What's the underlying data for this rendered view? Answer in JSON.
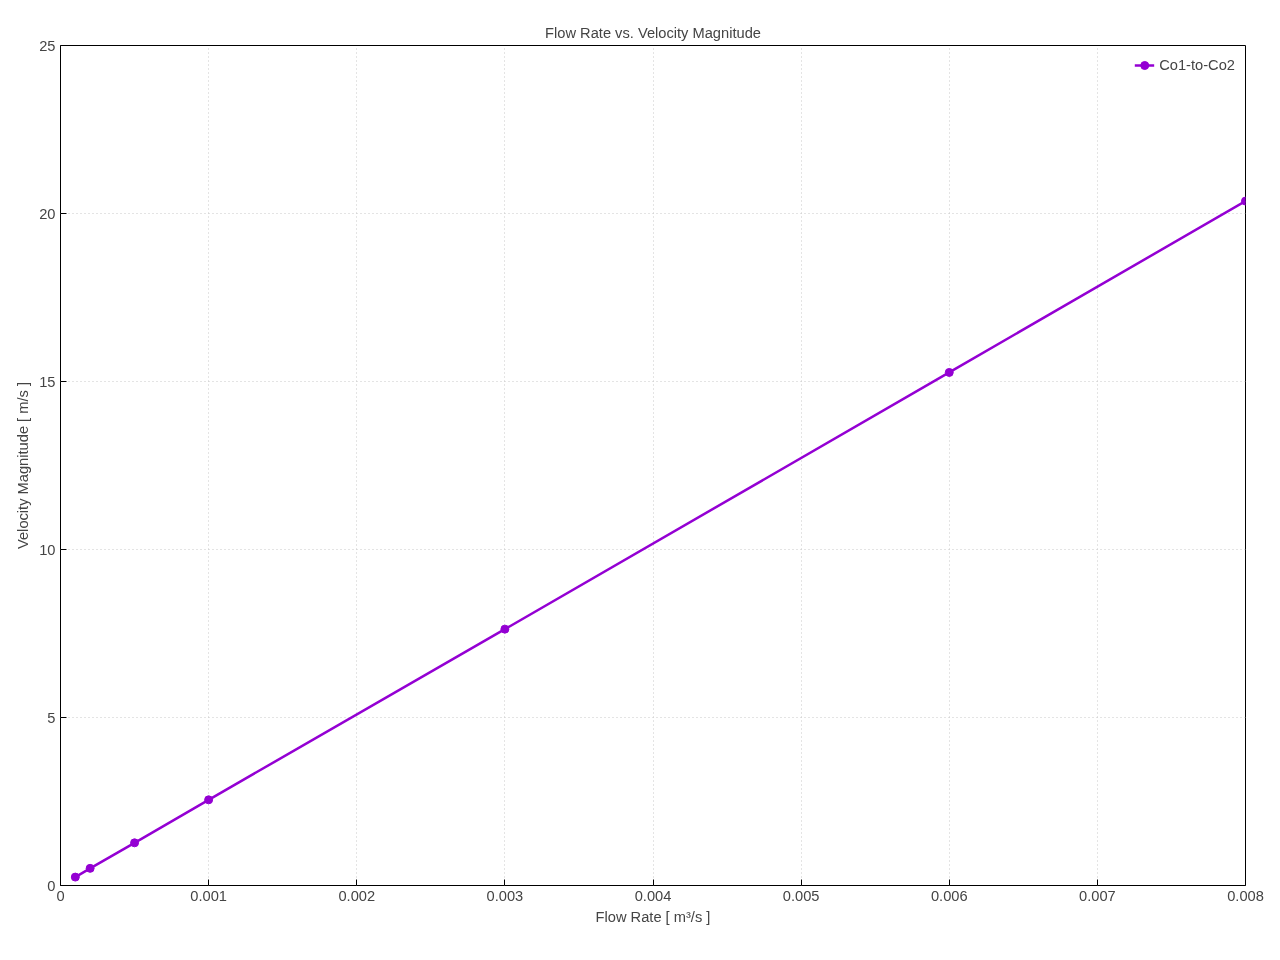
{
  "chart_data": {
    "type": "line",
    "title": "Flow Rate vs. Velocity Magnitude",
    "xlabel": "Flow Rate [ m³/s ]",
    "ylabel": "Velocity Magnitude [ m/s ]",
    "x": [
      0.0001,
      0.0002,
      0.0005,
      0.001,
      0.003,
      0.006,
      0.008
    ],
    "series": [
      {
        "name": "Co1-to-Co2",
        "color": "#9400d3",
        "values": [
          0.25,
          0.51,
          1.27,
          2.55,
          7.63,
          15.27,
          20.37
        ]
      }
    ],
    "xlim": [
      0,
      0.008
    ],
    "ylim": [
      0,
      25
    ],
    "xticks": [
      0,
      0.001,
      0.002,
      0.003,
      0.004,
      0.005,
      0.006,
      0.007,
      0.008
    ],
    "yticks": [
      0,
      5,
      10,
      15,
      20,
      25
    ],
    "grid": true,
    "legend": "top right",
    "marker": "circle",
    "line_style": "solid"
  }
}
